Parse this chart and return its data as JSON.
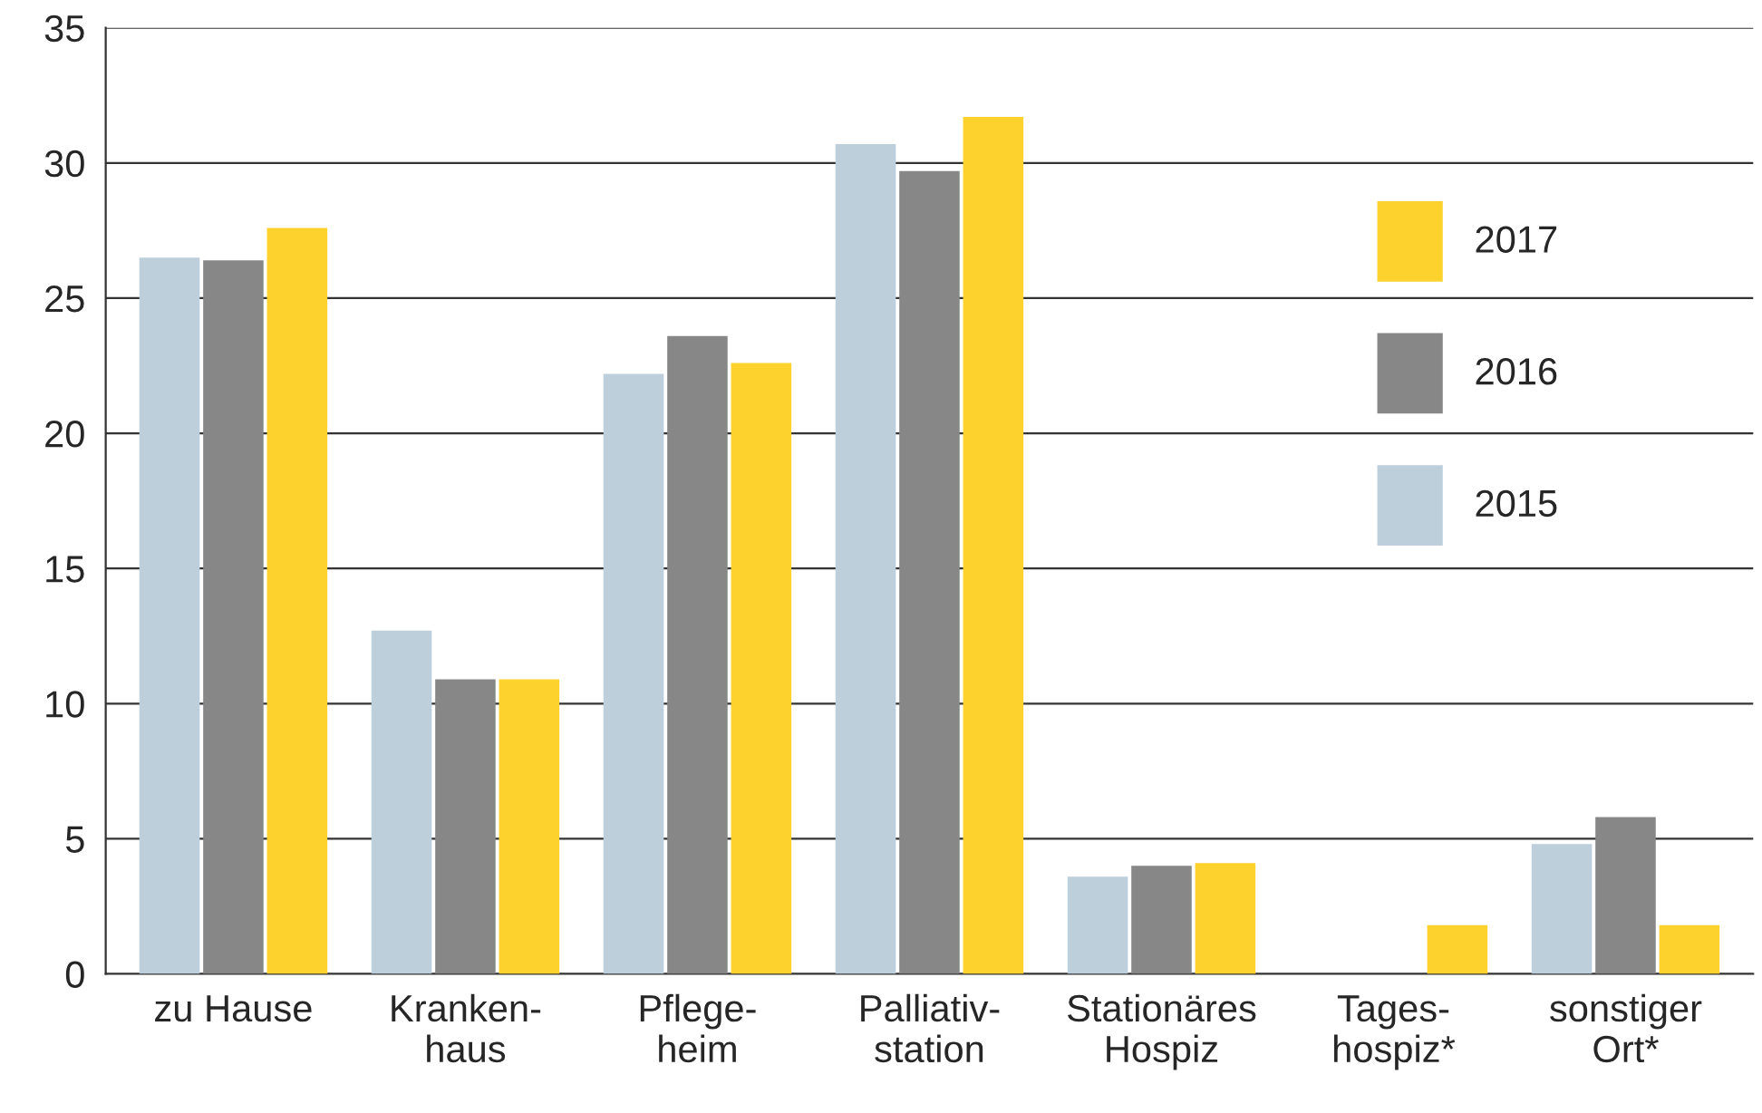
{
  "chart_data": {
    "type": "bar",
    "categories": [
      "zu Hause",
      "Kranken-\nhaus",
      "Pflege-\nheim",
      "Palliativ-\nstation",
      "Stationäres\nHospiz",
      "Tages-\nhospiz*",
      "sonstiger\nOrt*"
    ],
    "series": [
      {
        "name": "2015",
        "color": "#bccfdb",
        "values": [
          26.5,
          12.7,
          22.2,
          30.7,
          3.6,
          null,
          4.8
        ]
      },
      {
        "name": "2016",
        "color": "#878787",
        "values": [
          26.4,
          10.9,
          23.6,
          29.7,
          4.0,
          null,
          5.8
        ]
      },
      {
        "name": "2017",
        "color": "#fdd22c",
        "values": [
          27.6,
          10.9,
          22.6,
          31.7,
          4.1,
          1.8,
          1.8
        ]
      }
    ],
    "ylim": [
      0,
      35
    ],
    "yticks": [
      0,
      5,
      10,
      15,
      20,
      25,
      30,
      35
    ],
    "grid": "y",
    "legend": "top right"
  }
}
